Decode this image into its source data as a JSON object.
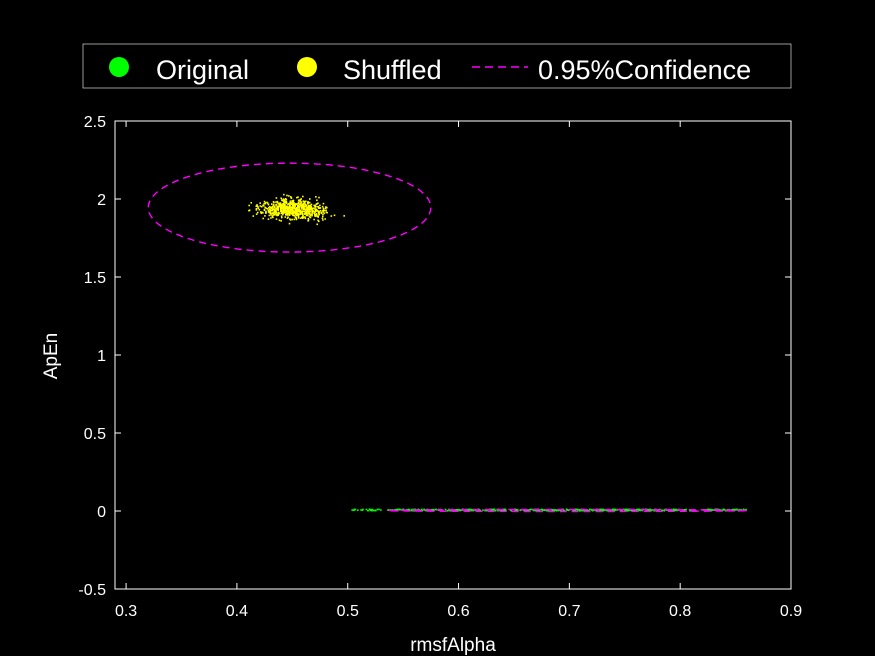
{
  "chart_data": {
    "type": "scatter",
    "title": "",
    "xlabel": "rmsfAlpha",
    "ylabel": "ApEn",
    "xlim": [
      0.29,
      0.9
    ],
    "ylim": [
      -0.5,
      2.5
    ],
    "xticks": [
      0.3,
      0.4,
      0.5,
      0.6,
      0.7,
      0.8,
      0.9
    ],
    "yticks": [
      -0.5,
      0,
      0.5,
      1,
      1.5,
      2,
      2.5
    ],
    "grid": false,
    "legend": {
      "placement": "top",
      "entries": [
        {
          "label": "Original",
          "marker": "dot",
          "color": "#00ff00"
        },
        {
          "label": "Shuffled",
          "marker": "dot",
          "color": "#ffff00"
        },
        {
          "label": "0.95%Confidence",
          "marker": "dashed-line",
          "color": "#ff00ff"
        }
      ]
    },
    "series": [
      {
        "name": "Original",
        "color": "#00ff00",
        "x_range": [
          0.5,
          0.86
        ],
        "y_range": [
          0.0,
          0.01
        ],
        "approx_count": 600
      },
      {
        "name": "Shuffled",
        "color": "#ffff00",
        "x_range": [
          0.315,
          0.625
        ],
        "y_range": [
          1.51,
          2.12
        ],
        "center": [
          0.45,
          1.94
        ],
        "approx_count": 700
      }
    ],
    "confidence_ellipses": [
      {
        "name": "Shuffled",
        "center": [
          0.4475,
          1.945
        ],
        "half_width": 0.1275,
        "half_height": 0.285,
        "color": "#ff00ff"
      },
      {
        "name": "Original",
        "center": [
          0.698,
          0.003
        ],
        "half_width": 0.162,
        "half_height": 0.005,
        "color": "#ff00ff"
      }
    ]
  }
}
